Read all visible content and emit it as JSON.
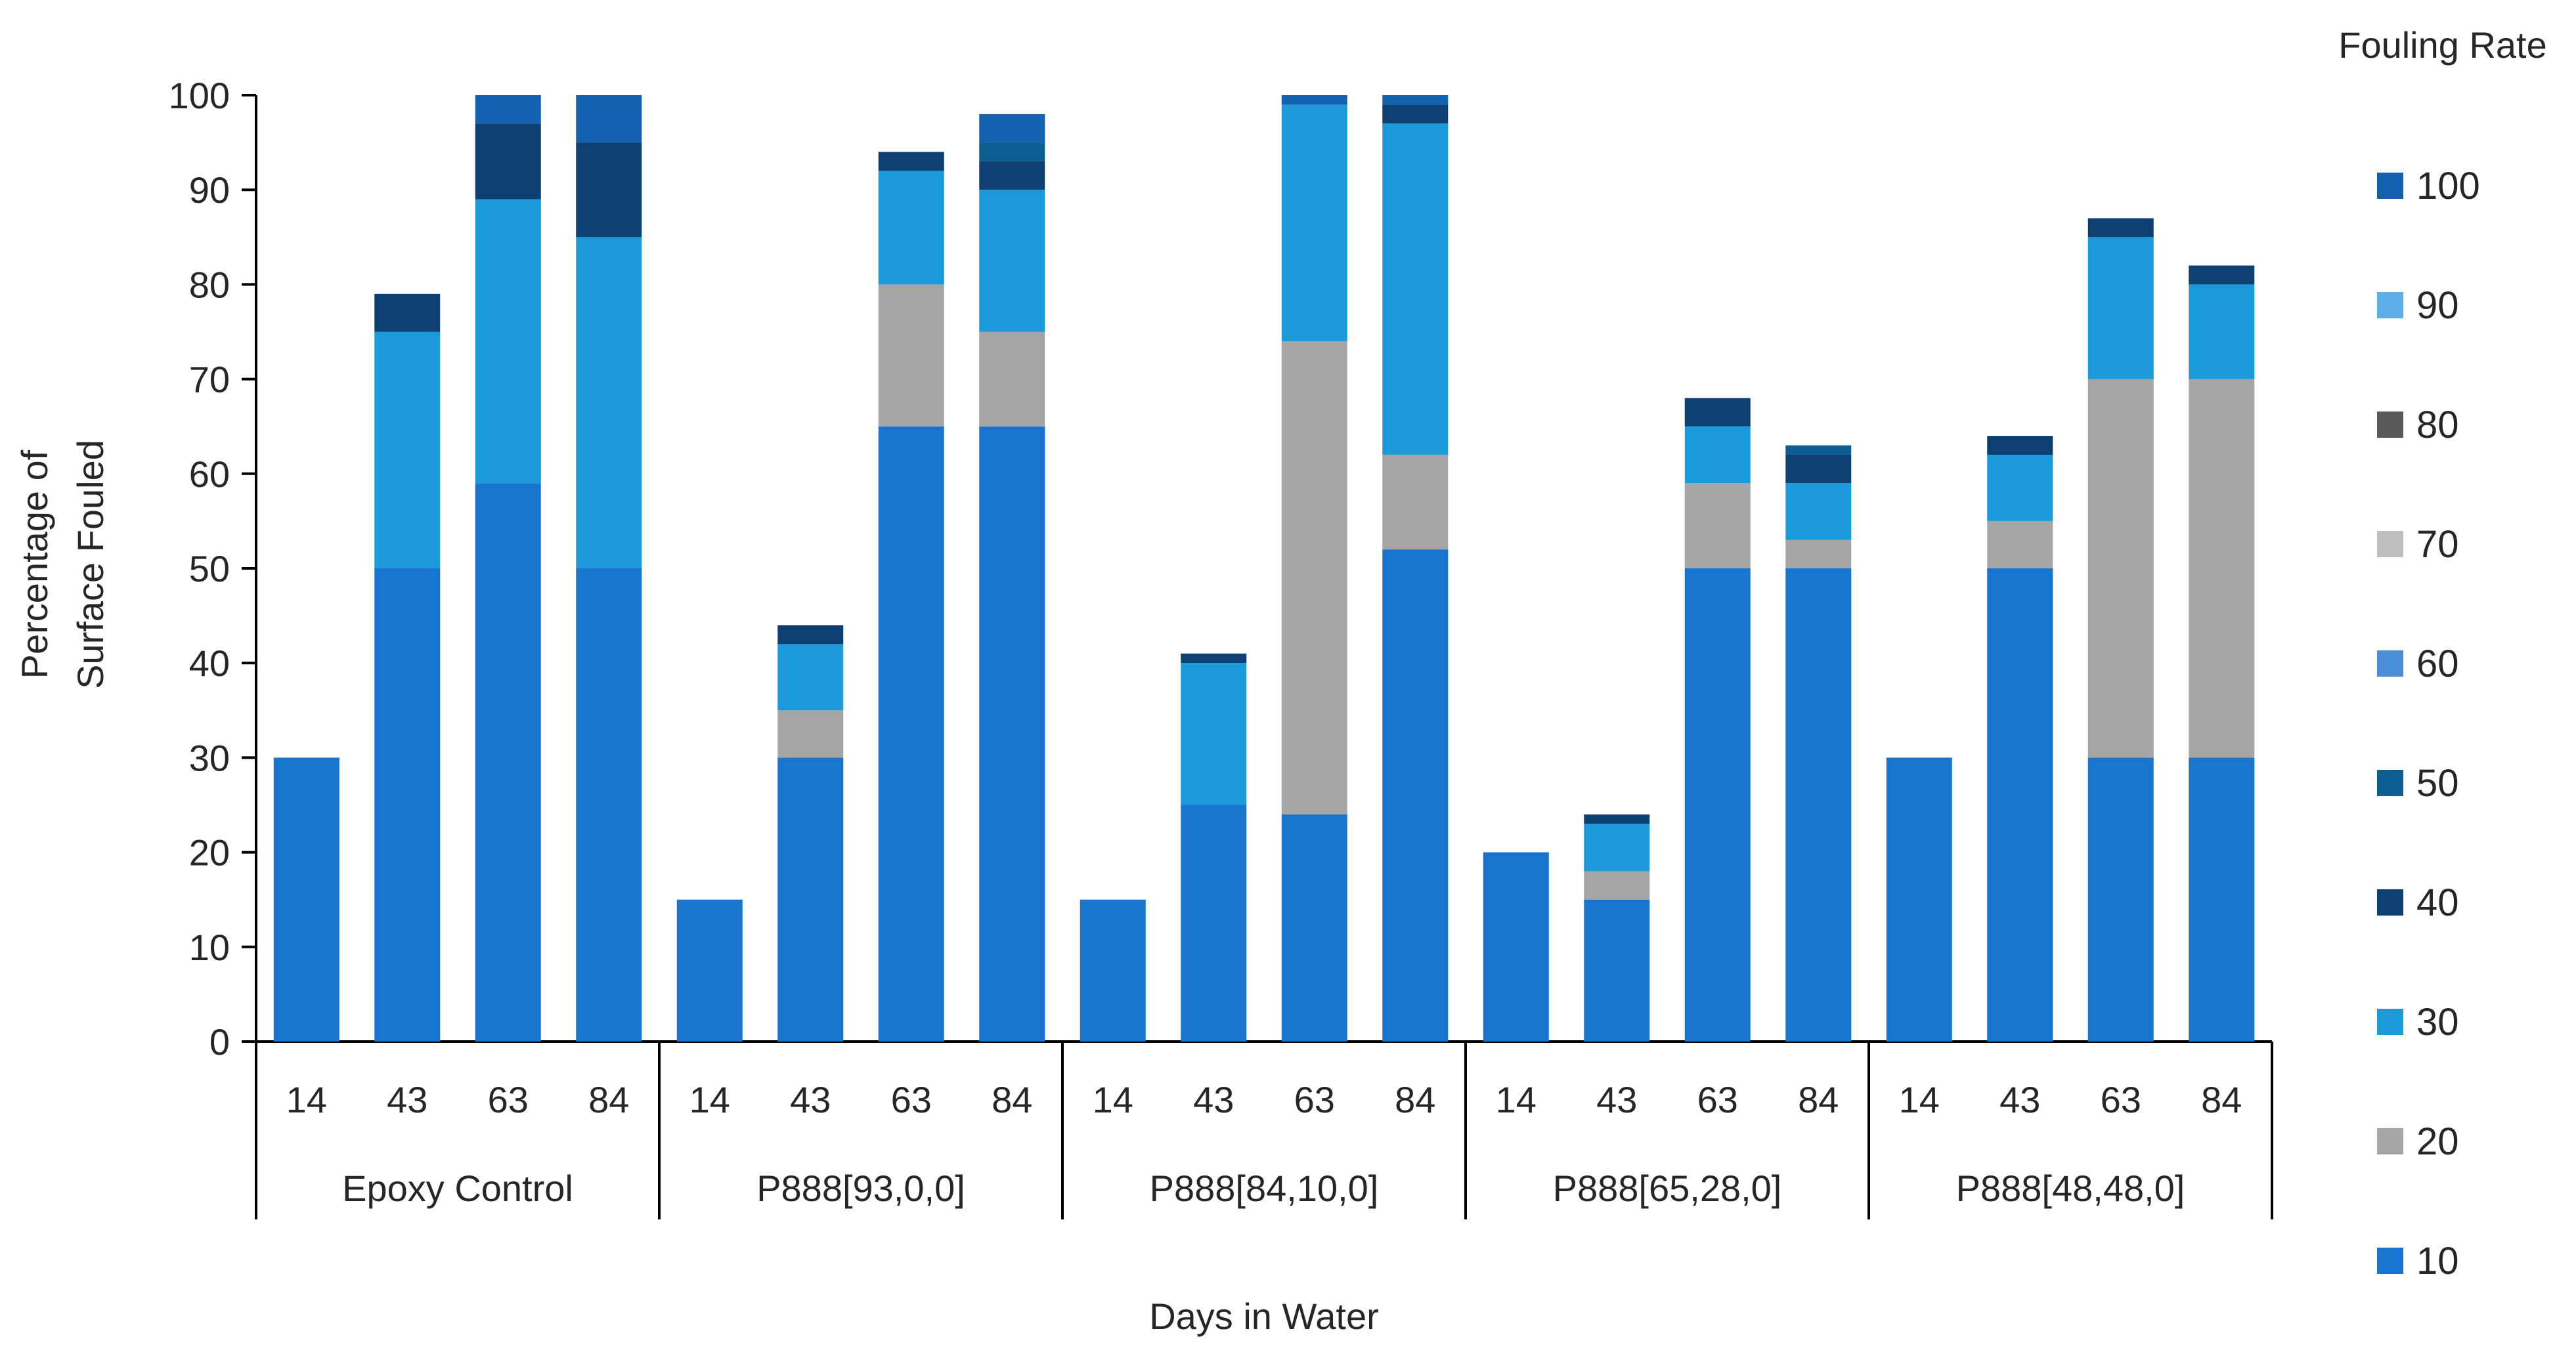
{
  "chart_data": {
    "type": "bar",
    "stacked": true,
    "title": "",
    "xlabel": "Days in Water",
    "ylabel_lines": [
      "Percentage of",
      "Surface Fouled"
    ],
    "ylim": [
      0,
      100
    ],
    "yticks": [
      0,
      10,
      20,
      30,
      40,
      50,
      60,
      70,
      80,
      90,
      100
    ],
    "legend_title": "Fouling Rate",
    "legend_position": "right",
    "groups": [
      {
        "name": "Epoxy Control",
        "categories": [
          "14",
          "43",
          "63",
          "84"
        ]
      },
      {
        "name": "P888[93,0,0]",
        "categories": [
          "14",
          "43",
          "63",
          "84"
        ]
      },
      {
        "name": "P888[84,10,0]",
        "categories": [
          "14",
          "43",
          "63",
          "84"
        ]
      },
      {
        "name": "P888[65,28,0]",
        "categories": [
          "14",
          "43",
          "63",
          "84"
        ]
      },
      {
        "name": "P888[48,48,0]",
        "categories": [
          "14",
          "43",
          "63",
          "84"
        ]
      }
    ],
    "series": [
      {
        "name": "10",
        "color": "#1874CD",
        "values": [
          30,
          50,
          59,
          50,
          15,
          30,
          65,
          65,
          15,
          25,
          24,
          52,
          20,
          15,
          50,
          50,
          30,
          50,
          30,
          30
        ]
      },
      {
        "name": "20",
        "color": "#A5A5A5",
        "values": [
          0,
          0,
          0,
          0,
          0,
          5,
          15,
          10,
          0,
          0,
          50,
          10,
          0,
          3,
          9,
          3,
          0,
          5,
          40,
          40
        ]
      },
      {
        "name": "30",
        "color": "#1A9AD9",
        "values": [
          0,
          25,
          30,
          35,
          0,
          7,
          12,
          15,
          0,
          15,
          25,
          35,
          0,
          5,
          6,
          6,
          0,
          7,
          15,
          10
        ]
      },
      {
        "name": "40",
        "color": "#0D3F73",
        "values": [
          0,
          4,
          8,
          10,
          0,
          2,
          2,
          3,
          0,
          1,
          0,
          2,
          0,
          1,
          3,
          3,
          0,
          2,
          2,
          2
        ]
      },
      {
        "name": "50",
        "color": "#0B5E91",
        "values": [
          0,
          0,
          0,
          0,
          0,
          0,
          0,
          2,
          0,
          0,
          0,
          0,
          0,
          0,
          0,
          1,
          0,
          0,
          0,
          0
        ]
      },
      {
        "name": "60",
        "color": "#4A8FD8",
        "values": [
          0,
          0,
          0,
          0,
          0,
          0,
          0,
          0,
          0,
          0,
          0,
          0,
          0,
          0,
          0,
          0,
          0,
          0,
          0,
          0
        ]
      },
      {
        "name": "70",
        "color": "#BFBFBF",
        "values": [
          0,
          0,
          0,
          0,
          0,
          0,
          0,
          0,
          0,
          0,
          0,
          0,
          0,
          0,
          0,
          0,
          0,
          0,
          0,
          0
        ]
      },
      {
        "name": "80",
        "color": "#595959",
        "values": [
          0,
          0,
          0,
          0,
          0,
          0,
          0,
          0,
          0,
          0,
          0,
          0,
          0,
          0,
          0,
          0,
          0,
          0,
          0,
          0
        ]
      },
      {
        "name": "90",
        "color": "#5BAEE8",
        "values": [
          0,
          0,
          0,
          0,
          0,
          0,
          0,
          0,
          0,
          0,
          0,
          0,
          0,
          0,
          0,
          0,
          0,
          0,
          0,
          0
        ]
      },
      {
        "name": "100",
        "color": "#1461B0",
        "values": [
          0,
          0,
          3,
          5,
          0,
          0,
          0,
          3,
          0,
          0,
          1,
          1,
          0,
          0,
          0,
          0,
          0,
          0,
          0,
          0
        ]
      }
    ],
    "legend_order": [
      "100",
      "90",
      "80",
      "70",
      "60",
      "50",
      "40",
      "30",
      "20",
      "10"
    ]
  }
}
